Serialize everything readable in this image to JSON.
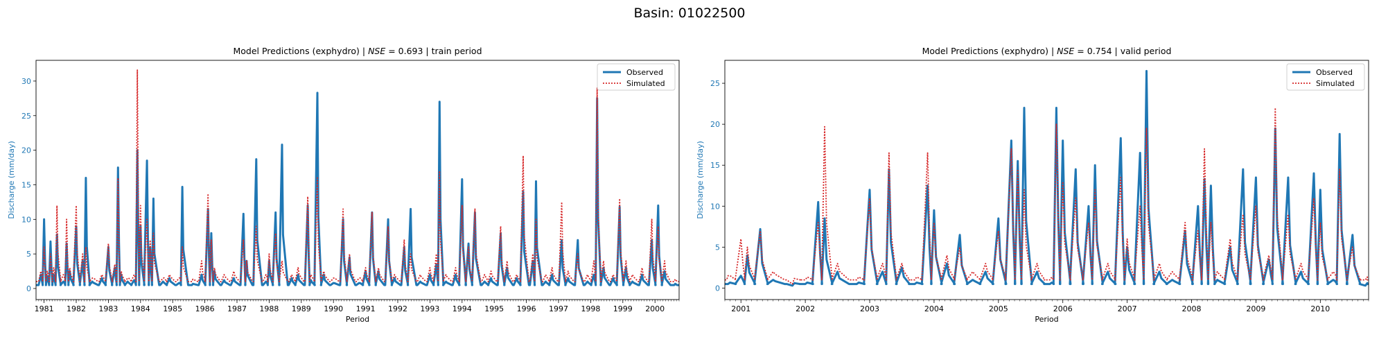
{
  "suptitle": "Basin: 01022500",
  "chart_data": [
    {
      "type": "line",
      "title": "Model Predictions (exphydro) | NSE = 0.693 | train period",
      "title_parts": {
        "prefix": "Model Predictions (exphydro) | ",
        "metric": "NSE",
        "rest": " = 0.693 | train period"
      },
      "xlabel": "Period",
      "ylabel": "Discharge (mm/day)",
      "xlim": [
        1980.75,
        2000.75
      ],
      "ylim": [
        -1.6,
        33.0
      ],
      "yticks": [
        0,
        5,
        10,
        15,
        20,
        25,
        30
      ],
      "xticks": [
        "1981",
        "1982",
        "1983",
        "1984",
        "1985",
        "1986",
        "1987",
        "1988",
        "1989",
        "1990",
        "1991",
        "1992",
        "1993",
        "1994",
        "1995",
        "1996",
        "1997",
        "1998",
        "1999",
        "2000"
      ],
      "legend": {
        "position": "top-right",
        "entries": [
          "Observed",
          "Simulated"
        ]
      },
      "colors": {
        "observed": "#1f77b4",
        "simulated": "#d62728",
        "axis_label": "#1f77b4"
      },
      "series": [
        {
          "name": "Observed",
          "style": "solid",
          "x": [
            1980.9,
            1981.0,
            1981.1,
            1981.2,
            1981.3,
            1981.4,
            1981.6,
            1981.7,
            1981.8,
            1982.0,
            1982.2,
            1982.3,
            1982.5,
            1982.8,
            1983.0,
            1983.2,
            1983.3,
            1983.4,
            1983.6,
            1983.8,
            1983.9,
            1984.0,
            1984.2,
            1984.3,
            1984.4,
            1984.7,
            1984.9,
            1985.2,
            1985.3,
            1985.6,
            1985.9,
            1986.1,
            1986.2,
            1986.3,
            1986.6,
            1986.9,
            1987.2,
            1987.3,
            1987.6,
            1987.9,
            1988.0,
            1988.2,
            1988.4,
            1988.7,
            1988.9,
            1989.2,
            1989.3,
            1989.5,
            1989.7,
            1990.0,
            1990.3,
            1990.5,
            1990.8,
            1991.0,
            1991.2,
            1991.4,
            1991.7,
            1991.9,
            1992.2,
            1992.4,
            1992.7,
            1993.0,
            1993.2,
            1993.3,
            1993.5,
            1993.8,
            1994.0,
            1994.2,
            1994.4,
            1994.7,
            1994.9,
            1995.2,
            1995.4,
            1995.7,
            1995.9,
            1996.2,
            1996.3,
            1996.6,
            1996.8,
            1997.1,
            1997.3,
            1997.6,
            1997.9,
            1998.1,
            1998.2,
            1998.4,
            1998.7,
            1998.9,
            1999.1,
            1999.3,
            1999.6,
            1999.9,
            2000.1,
            2000.3,
            2000.6
          ],
          "values": [
            2.0,
            10.0,
            1.8,
            6.8,
            2.0,
            7.8,
            1.0,
            6.5,
            2.5,
            9.0,
            4.0,
            16.0,
            1.0,
            1.5,
            6.0,
            3.0,
            17.5,
            2.0,
            1.0,
            1.2,
            20.0,
            9.0,
            18.5,
            6.0,
            13.0,
            1.0,
            1.5,
            0.8,
            14.7,
            0.5,
            2.0,
            11.5,
            8.0,
            2.5,
            1.2,
            1.5,
            10.8,
            4.0,
            18.7,
            1.0,
            4.0,
            11.0,
            20.8,
            1.5,
            2.0,
            12.0,
            1.2,
            28.3,
            2.0,
            0.8,
            10.0,
            4.5,
            0.8,
            2.5,
            11.0,
            2.5,
            10.0,
            1.5,
            6.0,
            11.5,
            1.0,
            2.0,
            3.5,
            27.0,
            1.0,
            2.0,
            15.8,
            6.5,
            11.0,
            1.0,
            1.5,
            8.0,
            3.0,
            1.5,
            14.0,
            4.0,
            15.5,
            1.0,
            2.0,
            7.0,
            1.5,
            7.0,
            1.0,
            2.0,
            27.5,
            3.0,
            1.5,
            11.8,
            3.0,
            1.0,
            2.0,
            7.0,
            12.0,
            2.5,
            0.5
          ]
        },
        {
          "name": "Simulated",
          "style": "dotted",
          "x": [
            1980.9,
            1981.0,
            1981.1,
            1981.2,
            1981.3,
            1981.4,
            1981.6,
            1981.7,
            1981.8,
            1982.0,
            1982.2,
            1982.3,
            1982.5,
            1982.8,
            1983.0,
            1983.2,
            1983.3,
            1983.4,
            1983.6,
            1983.8,
            1983.9,
            1984.0,
            1984.2,
            1984.3,
            1984.4,
            1984.7,
            1984.9,
            1985.2,
            1985.3,
            1985.6,
            1985.9,
            1986.1,
            1986.2,
            1986.3,
            1986.6,
            1986.9,
            1987.2,
            1987.3,
            1987.6,
            1987.9,
            1988.0,
            1988.2,
            1988.4,
            1988.7,
            1988.9,
            1989.2,
            1989.3,
            1989.5,
            1989.7,
            1990.0,
            1990.3,
            1990.5,
            1990.8,
            1991.0,
            1991.2,
            1991.4,
            1991.7,
            1991.9,
            1992.2,
            1992.4,
            1992.7,
            1993.0,
            1993.2,
            1993.3,
            1993.5,
            1993.8,
            1994.0,
            1994.2,
            1994.4,
            1994.7,
            1994.9,
            1995.2,
            1995.4,
            1995.7,
            1995.9,
            1996.2,
            1996.3,
            1996.6,
            1996.8,
            1997.1,
            1997.3,
            1997.6,
            1997.9,
            1998.1,
            1998.2,
            1998.4,
            1998.7,
            1998.9,
            1999.1,
            1999.3,
            1999.6,
            1999.9,
            2000.1,
            2000.3,
            2000.6
          ],
          "values": [
            2.5,
            6.0,
            2.5,
            5.0,
            3.0,
            12.0,
            2.0,
            10.0,
            3.0,
            12.0,
            5.0,
            6.0,
            1.5,
            2.0,
            6.5,
            3.5,
            16.0,
            2.5,
            1.5,
            2.0,
            31.6,
            12.0,
            10.0,
            7.0,
            8.0,
            1.5,
            2.0,
            1.5,
            6.0,
            1.0,
            4.0,
            13.7,
            7.0,
            3.0,
            2.0,
            2.5,
            7.0,
            4.0,
            9.0,
            2.0,
            5.0,
            8.0,
            4.0,
            2.0,
            3.0,
            13.3,
            2.0,
            16.0,
            2.5,
            1.5,
            11.5,
            5.0,
            1.5,
            3.0,
            11.0,
            3.0,
            9.0,
            2.0,
            7.0,
            5.0,
            2.0,
            3.0,
            5.0,
            17.0,
            2.0,
            3.0,
            12.0,
            6.0,
            11.5,
            2.0,
            2.5,
            9.0,
            4.0,
            2.0,
            19.2,
            5.0,
            10.0,
            2.0,
            3.0,
            12.5,
            2.5,
            5.0,
            2.0,
            4.0,
            29.0,
            4.0,
            2.0,
            13.0,
            4.0,
            2.0,
            3.0,
            10.0,
            9.0,
            4.0,
            1.0
          ]
        }
      ]
    },
    {
      "type": "line",
      "title": "Model Predictions (exphydro) | NSE = 0.754 | valid period",
      "title_parts": {
        "prefix": "Model Predictions (exphydro) | ",
        "metric": "NSE",
        "rest": " = 0.754 | valid period"
      },
      "xlabel": "Period",
      "ylabel": "Discharge (mm/day)",
      "xlim": [
        2000.75,
        2010.75
      ],
      "ylim": [
        -1.4,
        27.8
      ],
      "yticks": [
        0,
        5,
        10,
        15,
        20,
        25
      ],
      "xticks": [
        "2001",
        "2002",
        "2003",
        "2004",
        "2005",
        "2006",
        "2007",
        "2008",
        "2009",
        "2010"
      ],
      "legend": {
        "position": "top-right",
        "entries": [
          "Observed",
          "Simulated"
        ]
      },
      "colors": {
        "observed": "#1f77b4",
        "simulated": "#d62728",
        "axis_label": "#1f77b4"
      },
      "series": [
        {
          "name": "Observed",
          "style": "solid",
          "x": [
            2000.8,
            2001.0,
            2001.1,
            2001.3,
            2001.5,
            2001.8,
            2002.0,
            2002.2,
            2002.3,
            2002.5,
            2002.8,
            2003.0,
            2003.2,
            2003.3,
            2003.5,
            2003.7,
            2003.9,
            2004.0,
            2004.2,
            2004.4,
            2004.6,
            2004.8,
            2005.0,
            2005.2,
            2005.3,
            2005.4,
            2005.6,
            2005.8,
            2005.9,
            2006.0,
            2006.2,
            2006.4,
            2006.5,
            2006.7,
            2006.9,
            2007.0,
            2007.2,
            2007.3,
            2007.5,
            2007.7,
            2007.9,
            2008.1,
            2008.2,
            2008.3,
            2008.4,
            2008.6,
            2008.8,
            2009.0,
            2009.2,
            2009.3,
            2009.5,
            2009.7,
            2009.9,
            2010.0,
            2010.2,
            2010.3,
            2010.5,
            2010.7
          ],
          "values": [
            0.5,
            1.5,
            4.0,
            7.2,
            1.0,
            0.3,
            0.5,
            10.5,
            8.5,
            2.0,
            0.5,
            12.0,
            2.0,
            14.5,
            2.5,
            0.5,
            12.5,
            9.5,
            3.0,
            6.5,
            1.0,
            2.0,
            8.5,
            18.0,
            15.5,
            22.0,
            2.0,
            0.5,
            22.0,
            18.0,
            14.5,
            10.0,
            15.0,
            2.0,
            18.3,
            5.0,
            16.5,
            26.5,
            2.0,
            1.0,
            7.0,
            10.0,
            13.3,
            12.5,
            1.0,
            5.0,
            14.5,
            13.5,
            3.5,
            19.5,
            13.5,
            2.0,
            14.0,
            12.0,
            1.0,
            18.8,
            6.5,
            0.3
          ]
        },
        {
          "name": "Simulated",
          "style": "dotted",
          "x": [
            2000.8,
            2001.0,
            2001.1,
            2001.3,
            2001.5,
            2001.8,
            2002.0,
            2002.2,
            2002.3,
            2002.5,
            2002.8,
            2003.0,
            2003.2,
            2003.3,
            2003.5,
            2003.7,
            2003.9,
            2004.0,
            2004.2,
            2004.4,
            2004.6,
            2004.8,
            2005.0,
            2005.2,
            2005.3,
            2005.4,
            2005.6,
            2005.8,
            2005.9,
            2006.0,
            2006.2,
            2006.4,
            2006.5,
            2006.7,
            2006.9,
            2007.0,
            2007.2,
            2007.3,
            2007.5,
            2007.7,
            2007.9,
            2008.1,
            2008.2,
            2008.3,
            2008.4,
            2008.6,
            2008.8,
            2009.0,
            2009.2,
            2009.3,
            2009.5,
            2009.7,
            2009.9,
            2010.0,
            2010.2,
            2010.3,
            2010.5,
            2010.7
          ],
          "values": [
            1.5,
            6.0,
            5.0,
            7.0,
            2.0,
            0.5,
            1.0,
            8.0,
            19.7,
            3.0,
            1.0,
            11.0,
            3.0,
            16.5,
            3.0,
            1.0,
            16.5,
            8.0,
            4.0,
            5.0,
            2.0,
            3.0,
            7.0,
            17.0,
            14.5,
            12.0,
            3.0,
            1.0,
            20.0,
            13.0,
            11.0,
            8.0,
            12.0,
            3.0,
            13.5,
            6.0,
            10.0,
            19.5,
            3.0,
            2.0,
            8.0,
            7.0,
            17.0,
            8.0,
            2.0,
            6.0,
            9.0,
            10.0,
            4.0,
            22.0,
            9.0,
            3.0,
            11.0,
            8.0,
            2.0,
            14.5,
            5.0,
            1.0
          ]
        }
      ]
    }
  ]
}
